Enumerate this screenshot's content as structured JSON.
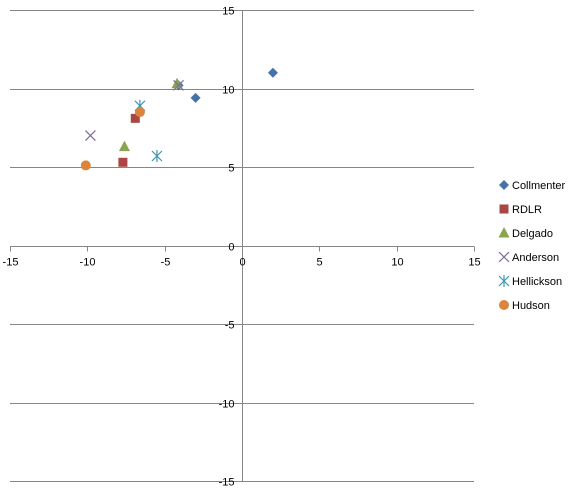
{
  "chart_data": {
    "type": "scatter",
    "xlim": [
      -15,
      15
    ],
    "ylim": [
      -15,
      15
    ],
    "x_ticks": [
      -15,
      -10,
      -5,
      0,
      5,
      10,
      15
    ],
    "y_ticks": [
      15,
      10,
      5,
      0,
      -5,
      -10,
      -15
    ],
    "grid": "horizontal major gridlines",
    "legend_position": "right",
    "series": [
      {
        "name": "Collmenter",
        "marker": "diamond",
        "color": "#4572A7",
        "points": [
          {
            "x": 2.0,
            "y": 11.0
          },
          {
            "x": -3.0,
            "y": 9.4
          },
          {
            "x": -4.1,
            "y": 10.2
          }
        ]
      },
      {
        "name": "RDLR",
        "marker": "square",
        "color": "#AA4643",
        "points": [
          {
            "x": -6.9,
            "y": 8.1
          },
          {
            "x": -7.7,
            "y": 5.3
          }
        ]
      },
      {
        "name": "Delgado",
        "marker": "triangle",
        "color": "#89A54E",
        "points": [
          {
            "x": -4.2,
            "y": 10.3
          },
          {
            "x": -7.6,
            "y": 6.3
          }
        ]
      },
      {
        "name": "Anderson",
        "marker": "x",
        "color": "#80699B",
        "points": [
          {
            "x": -9.8,
            "y": 7.0
          },
          {
            "x": -4.1,
            "y": 10.2
          }
        ]
      },
      {
        "name": "Hellickson",
        "marker": "asterisk",
        "color": "#3D96AE",
        "points": [
          {
            "x": -6.6,
            "y": 8.9
          },
          {
            "x": -5.5,
            "y": 5.7
          }
        ]
      },
      {
        "name": "Hudson",
        "marker": "circle",
        "color": "#DB843D",
        "points": [
          {
            "x": -6.6,
            "y": 8.5
          },
          {
            "x": -10.1,
            "y": 5.1
          }
        ]
      }
    ]
  }
}
